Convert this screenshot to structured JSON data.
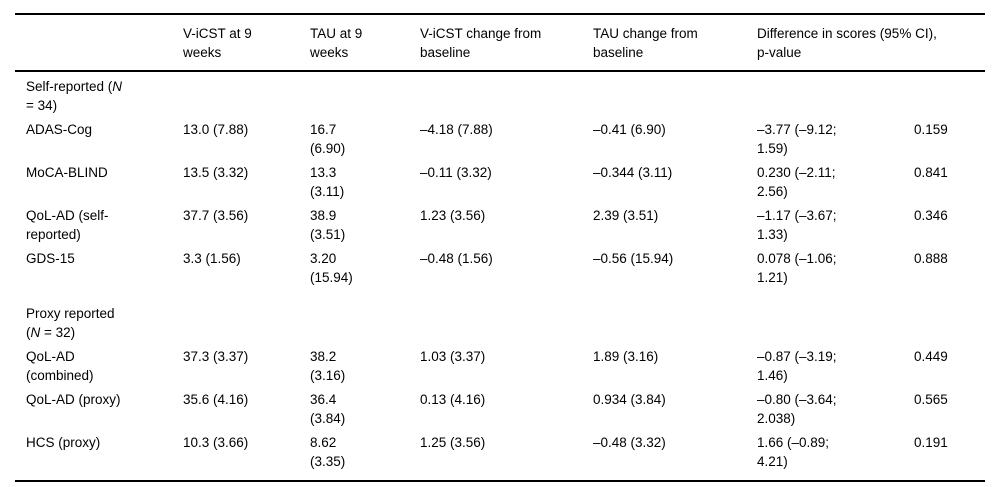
{
  "table": {
    "column_headers": [
      {
        "label": ""
      },
      {
        "label": "V-iCST at 9\nweeks"
      },
      {
        "label": "TAU at 9\nweeks"
      },
      {
        "label": "V-iCST change from\nbaseline"
      },
      {
        "label": "TAU change from\nbaseline"
      },
      {
        "label": "Difference in scores (95% CI),\np-value",
        "colspan": 2
      }
    ],
    "rows": [
      {
        "type": "section",
        "label_parts": {
          "pre": "Self-reported (",
          "italic": "N",
          "post": "\n= 34)"
        }
      },
      {
        "type": "data",
        "label": "ADAS-Cog",
        "cells": [
          "13.0 (7.88)",
          "16.7\n(6.90)",
          "–4.18 (7.88)",
          "–0.41 (6.90)",
          "–3.77 (–9.12;\n1.59)",
          "0.159"
        ]
      },
      {
        "type": "data",
        "label": "MoCA-BLIND",
        "cells": [
          "13.5 (3.32)",
          "13.3\n(3.11)",
          "–0.11 (3.32)",
          "–0.344 (3.11)",
          "0.230 (–2.11;\n2.56)",
          "0.841"
        ]
      },
      {
        "type": "data",
        "label": "QoL-AD (self-\nreported)",
        "cells": [
          "37.7 (3.56)",
          "38.9\n(3.51)",
          "1.23 (3.56)",
          "2.39 (3.51)",
          "–1.17 (–3.67;\n1.33)",
          "0.346"
        ]
      },
      {
        "type": "data",
        "label": "GDS-15",
        "cells": [
          "3.3 (1.56)",
          "3.20\n(15.94)",
          "–0.48 (1.56)",
          "–0.56 (15.94)",
          "0.078 (–1.06;\n1.21)",
          "0.888"
        ]
      },
      {
        "type": "section",
        "spaced": true,
        "label_parts": {
          "pre": "Proxy reported\n(",
          "italic": "N",
          "post": " = 32)"
        }
      },
      {
        "type": "data",
        "label": "QoL-AD\n(combined)",
        "cells": [
          "37.3 (3.37)",
          "38.2\n(3.16)",
          "1.03 (3.37)",
          "1.89 (3.16)",
          "–0.87 (–3.19;\n1.46)",
          "0.449"
        ]
      },
      {
        "type": "data",
        "label": "QoL-AD (proxy)",
        "cells": [
          "35.6 (4.16)",
          "36.4\n(3.84)",
          "0.13 (4.16)",
          "0.934 (3.84)",
          "–0.80 (–3.64;\n2.038)",
          "0.565"
        ]
      },
      {
        "type": "data",
        "label": "HCS (proxy)",
        "cells": [
          "10.3 (3.66)",
          "8.62\n(3.35)",
          "1.25 (3.56)",
          "–0.48 (3.32)",
          "1.66 (–0.89;\n4.21)",
          "0.191"
        ]
      }
    ]
  }
}
